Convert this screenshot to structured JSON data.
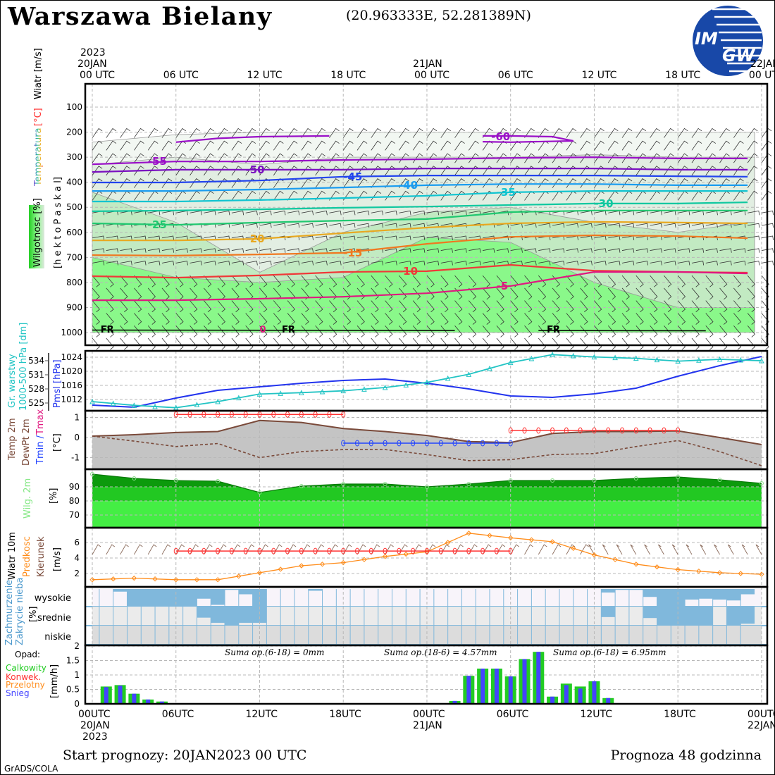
{
  "header": {
    "title": "Warszawa Bielany",
    "coords": "(20.963333E, 52.281389N)",
    "logo_text_1": "IM",
    "logo_text_2": "GW"
  },
  "top_axis": {
    "year": "2023",
    "day1": "20JAN",
    "day2": "21JAN",
    "day3": "22JAN",
    "labels": [
      "00 UTC",
      "06 UTC",
      "12 UTC",
      "18 UTC",
      "00 UTC",
      "06 UTC",
      "12 UTC",
      "18 UTC",
      "00 UTC"
    ]
  },
  "bottom_axis": {
    "labels": [
      "00UTC",
      "06UTC",
      "12UTC",
      "18UTC",
      "00UTC",
      "06UTC",
      "12UTC",
      "18UTC",
      "00UTC"
    ],
    "day1": "20JAN",
    "year": "2023",
    "day2": "21JAN",
    "day3": "22JAN"
  },
  "footer": {
    "start": "Start prognozy: 20JAN2023 00 UTC",
    "range": "Prognoza 48 godzinna",
    "credit": "GrADS/COLA"
  },
  "colors": {
    "pmsl": "#2233ee",
    "geopotential": "#22c4c4",
    "temp": "#7a4a3a",
    "tmax": "#ff3333",
    "tmin": "#2244ff",
    "rh_dark": "#0c9a0c",
    "rh_mid": "#22c822",
    "rh_light": "#44ee44",
    "wind_speed": "#ff8c1a",
    "cloud": "#80b8dc",
    "precip_total": "#22cc22",
    "precip_snow": "#4444ff"
  },
  "chart_data": [
    {
      "type": "contour",
      "panel": "upper-air",
      "labels": {
        "wind": "Wiatr [m/s]",
        "temp_unit": "[°C]",
        "temp": "Temperatura",
        "humidity": "Wilgotnosc [%]",
        "ylabel": "[h e k t o P a s k a l]"
      },
      "yticks": [
        100,
        200,
        300,
        400,
        500,
        600,
        700,
        800,
        900,
        1000
      ],
      "ylim": [
        50,
        1030
      ],
      "hours": [
        0,
        6,
        12,
        18,
        24,
        30,
        36,
        42,
        47
      ],
      "isotherms": [
        {
          "label": "-55",
          "color": "#9a10c8",
          "p": [
            328,
            317,
            317,
            311,
            308,
            303,
            300,
            305,
            305
          ]
        },
        {
          "label": "-50",
          "color": "#7a10c0",
          "p": [
            359,
            350,
            350,
            350,
            345,
            345,
            345,
            350,
            350
          ]
        },
        {
          "label": "-45",
          "color": "#2244ee",
          "p": [
            401,
            401,
            393,
            378,
            373,
            373,
            373,
            376,
            378
          ]
        },
        {
          "label": "-40",
          "color": "#1a9cf0",
          "p": [
            435,
            435,
            429,
            421,
            412,
            407,
            407,
            412,
            412
          ]
        },
        {
          "label": "-35",
          "color": "#10c4d0",
          "p": [
            477,
            477,
            471,
            463,
            454,
            440,
            435,
            435,
            435
          ]
        },
        {
          "label": "-30",
          "color": "#10c8a0",
          "p": [
            516,
            513,
            508,
            502,
            497,
            491,
            485,
            485,
            480
          ]
        },
        {
          "label": "-25",
          "color": "#20c870",
          "p": [
            564,
            570,
            561,
            553,
            547,
            519,
            513,
            513,
            513
          ]
        },
        {
          "label": "-20",
          "color": "#e8a820",
          "p": [
            632,
            632,
            626,
            603,
            581,
            564,
            558,
            561,
            564
          ]
        },
        {
          "label": "-15",
          "color": "#f07820",
          "p": [
            691,
            693,
            688,
            682,
            646,
            618,
            612,
            615,
            623
          ]
        },
        {
          "label": "-10",
          "color": "#f03838",
          "p": [
            775,
            781,
            772,
            758,
            755,
            730,
            753,
            758,
            761
          ]
        },
        {
          "label": "-5",
          "color": "#e01880",
          "p": [
            871,
            871,
            865,
            857,
            843,
            814,
            758,
            758,
            764
          ]
        }
      ],
      "isotherm_minus60": {
        "label": "-60",
        "color": "#9a10c8",
        "segments": [
          {
            "hours": [
              6,
              9,
              12,
              17
            ],
            "p": [
              240,
              225,
              218,
              215
            ]
          },
          {
            "hours": [
              28,
              30,
              33,
              34.5,
              30,
              28
            ],
            "p": [
              215,
              215,
              218,
              235,
              240,
              238
            ]
          }
        ]
      },
      "humidity_bands": [
        {
          "level": "<30",
          "color": "#f2f7f2",
          "top_p": [
            240,
            210,
            200,
            200,
            200,
            200,
            200,
            200,
            200
          ]
        },
        {
          "level": "30-70",
          "color": "#e2eee2",
          "top_p": [
            330,
            300,
            330,
            300,
            300,
            300,
            290,
            300,
            300
          ]
        },
        {
          "level": "70-90",
          "color": "#c2eac2",
          "top_p": [
            440,
            560,
            760,
            600,
            520,
            500,
            560,
            600,
            560
          ]
        },
        {
          "level": ">90",
          "color": "#8af88a",
          "top_p": [
            700,
            780,
            800,
            780,
            620,
            640,
            800,
            900,
            900
          ]
        }
      ],
      "annotations": [
        {
          "text": "FR",
          "hour": 1
        },
        {
          "text": "FR",
          "hour": 14
        },
        {
          "text": "FR",
          "hour": 33
        },
        {
          "text": "0",
          "hour": 12
        }
      ]
    },
    {
      "type": "line",
      "panel": "pressure",
      "x_hours": [
        0,
        3,
        6,
        9,
        12,
        15,
        18,
        21,
        24,
        27,
        30,
        33,
        36,
        39,
        42,
        45,
        48
      ],
      "series": [
        {
          "name": "Pmsl [hPa]",
          "axis": "right",
          "values": [
            1010.4,
            1009.8,
            1012.4,
            1014.6,
            1015.6,
            1016.6,
            1017.4,
            1017.8,
            1016.6,
            1015,
            1013,
            1012.6,
            1013.6,
            1015.2,
            1018.6,
            1021.6,
            1024.2
          ]
        },
        {
          "name": "Gr. warstwy 1000-500 hPa [dm]",
          "axis": "left",
          "values": [
            525.3,
            524.5,
            524,
            525.3,
            526.9,
            527.2,
            527.6,
            528.3,
            529.4,
            531.1,
            533.6,
            535.3,
            534.8,
            534.5,
            533.9,
            534.3,
            534
          ]
        }
      ],
      "label_geo_1": "Gr. warstwy",
      "label_geo_2": "1000-500 hPa [dm]",
      "label_pmsl": "Pmsl [hPa]",
      "yticks_left": [
        525,
        528,
        531,
        534
      ],
      "yticks_right": [
        1012,
        1016,
        1020,
        1024
      ]
    },
    {
      "type": "line",
      "panel": "temperature",
      "x_hours": [
        0,
        3,
        6,
        9,
        12,
        15,
        18,
        21,
        24,
        27,
        30,
        33,
        36,
        39,
        42,
        45,
        48
      ],
      "series": [
        {
          "name": "Temp 2m",
          "values": [
            0.07,
            0.14,
            0.25,
            0.3,
            0.85,
            0.75,
            0.45,
            0.3,
            0.1,
            -0.2,
            -0.25,
            0.2,
            0.3,
            0.3,
            0.33,
            0,
            -0.35
          ]
        },
        {
          "name": "DewPt 2m",
          "values": [
            0.07,
            -0.18,
            -0.45,
            -0.3,
            -1.0,
            -0.7,
            -0.6,
            -0.6,
            -0.85,
            -1.15,
            -1.1,
            -0.85,
            -0.8,
            -0.45,
            -0.15,
            -0.7,
            -1.4
          ]
        }
      ],
      "tmax": [
        {
          "from": 6,
          "to": 18,
          "value": 1.15
        },
        {
          "from": 30,
          "to": 42,
          "value": 0.35
        }
      ],
      "tmin": [
        {
          "from": 18,
          "to": 30,
          "value": -0.28
        }
      ],
      "labels": {
        "temp": "Temp 2m",
        "dew": "DewPt 2m",
        "tmin": "Tmin /",
        "tmax": "Tmax",
        "unit": "[°C]"
      },
      "yticks": [
        1,
        0,
        -1
      ]
    },
    {
      "type": "area",
      "panel": "humidity",
      "x_hours": [
        0,
        3,
        6,
        9,
        12,
        15,
        18,
        21,
        24,
        27,
        30,
        33,
        36,
        39,
        42,
        45,
        48
      ],
      "values": [
        99,
        96,
        94.5,
        94,
        86,
        90.5,
        92,
        92,
        90,
        92,
        94.5,
        94.5,
        94.5,
        96,
        97,
        95,
        92.5
      ],
      "labels": {
        "name": "Wilg. 2m",
        "unit": "[%]"
      },
      "yticks": [
        90,
        80,
        70
      ]
    },
    {
      "type": "line",
      "panel": "wind-10m",
      "x_hours": [
        0,
        3,
        6,
        9,
        12,
        15,
        18,
        21,
        24,
        27,
        30,
        33,
        36,
        39,
        42,
        45,
        48
      ],
      "speed": [
        1.2,
        1.4,
        1.2,
        1.2,
        2.1,
        3.0,
        3.4,
        4.2,
        4.8,
        7.2,
        6.6,
        6.1,
        4.4,
        3.2,
        2.5,
        2.1,
        1.9
      ],
      "max_line": {
        "from": 6,
        "to": 30,
        "value": 4.9
      },
      "labels": {
        "title": "Wiatr 10m",
        "speed": "Predkosc",
        "dir": "Kierunek",
        "unit": "[m/s]"
      },
      "yticks": [
        6,
        4,
        2
      ]
    },
    {
      "type": "bar",
      "panel": "cloud-cover",
      "hours_from": 1,
      "high": [
        0,
        0.15,
        1,
        1,
        1,
        1,
        1,
        0.55,
        0.9,
        0.05,
        0.3,
        1,
        0,
        0,
        0,
        0.1,
        0,
        0,
        0,
        0,
        0,
        0,
        0,
        0,
        0,
        0,
        0,
        0,
        0,
        0,
        0,
        0,
        0,
        0,
        0,
        0,
        0.2,
        0.05,
        0.05,
        0.45,
        1,
        1,
        0.6,
        0.55,
        0.6,
        0.65,
        0.3
      ],
      "mid": [
        0,
        0,
        0,
        0,
        0,
        0,
        0,
        0.58,
        0.85,
        1,
        0.85,
        0.85,
        0,
        0,
        0,
        0,
        0,
        0,
        0,
        0,
        0,
        0,
        0,
        0,
        0,
        0,
        0,
        0,
        0,
        0,
        0,
        0,
        0,
        0,
        0,
        0,
        0.55,
        0,
        0,
        0.6,
        1,
        1,
        1,
        1,
        0,
        1,
        0.9
      ],
      "low": 0,
      "labels": {
        "l1": "Zachmurzenie",
        "l2": "Zakrycie nieba",
        "unit": "[%]",
        "high": "wysokie",
        "mid": "srednie",
        "low": "niskie"
      }
    },
    {
      "type": "bar",
      "panel": "precipitation",
      "hours_from": 1,
      "total": [
        0.6,
        0.65,
        0.35,
        0.15,
        0.08,
        0,
        0,
        0,
        0,
        0,
        0,
        0,
        0,
        0,
        0,
        0,
        0,
        0,
        0,
        0,
        0,
        0,
        0,
        0,
        0,
        0.1,
        0.97,
        1.22,
        1.22,
        0.95,
        1.55,
        1.8,
        0.25,
        0.7,
        0.6,
        0.78,
        0.2,
        0,
        0,
        0,
        0,
        0,
        0,
        0,
        0,
        0,
        0
      ],
      "snow": [
        0.58,
        0.63,
        0.35,
        0.15,
        0.08,
        0,
        0,
        0,
        0,
        0,
        0,
        0,
        0,
        0,
        0,
        0,
        0,
        0,
        0,
        0,
        0,
        0,
        0,
        0,
        0,
        0.1,
        0.97,
        1.22,
        1.22,
        0.95,
        1.55,
        1.8,
        0.25,
        0.65,
        0.53,
        0.78,
        0.2,
        0,
        0,
        0,
        0,
        0,
        0,
        0,
        0,
        0,
        0
      ],
      "yticks": [
        0,
        0.5,
        1,
        1.5,
        2
      ],
      "ytick_labels": [
        "0",
        "0.5",
        "1",
        "1.5",
        "2"
      ],
      "ylim": [
        0,
        2
      ],
      "labels": {
        "opad": "Opad:",
        "total": "Calkowity",
        "conv": "Konwek.",
        "showers": "Przelotny",
        "snow": "Snieg",
        "unit": "[mm/h]"
      },
      "sums": [
        "Suma op.(6-18) = 0mm",
        "Suma op.(18-6) = 4.57mm",
        "Suma op.(6-18) = 6.95mm"
      ]
    }
  ]
}
